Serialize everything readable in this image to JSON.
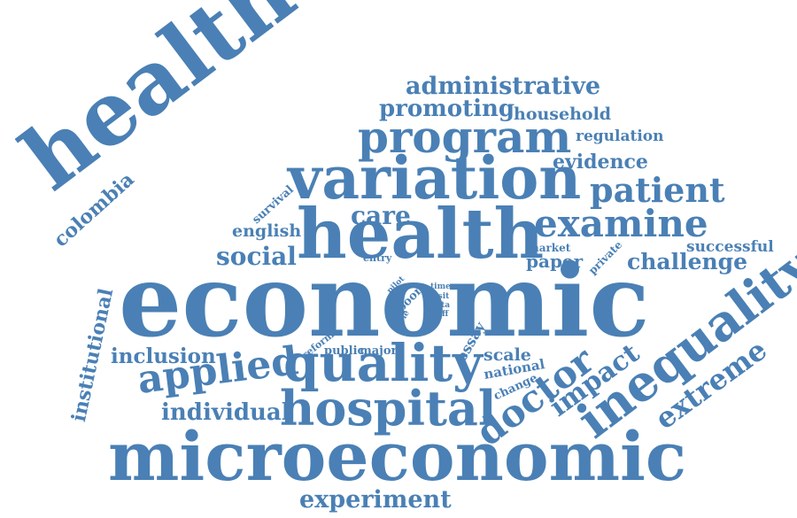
{
  "style": {
    "color": "#4a80b5",
    "background": "#ffffff"
  },
  "words": [
    "healthcare",
    "economic",
    "microeconomic",
    "health",
    "variation",
    "hospital",
    "quality",
    "inequality",
    "program",
    "applied",
    "doctor",
    "examine",
    "patient",
    "extreme",
    "administrative",
    "promoting",
    "challenge",
    "impact",
    "individual",
    "experiment",
    "social",
    "inclusion",
    "institutional",
    "colombia",
    "household",
    "evidence",
    "care",
    "paper",
    "regulation",
    "successful",
    "english",
    "survival",
    "market",
    "private",
    "scale",
    "national",
    "change",
    "essay",
    "public",
    "major",
    "reform",
    "entry",
    "pilot",
    "poor",
    "role",
    "time",
    "visit",
    "data",
    "staff"
  ]
}
